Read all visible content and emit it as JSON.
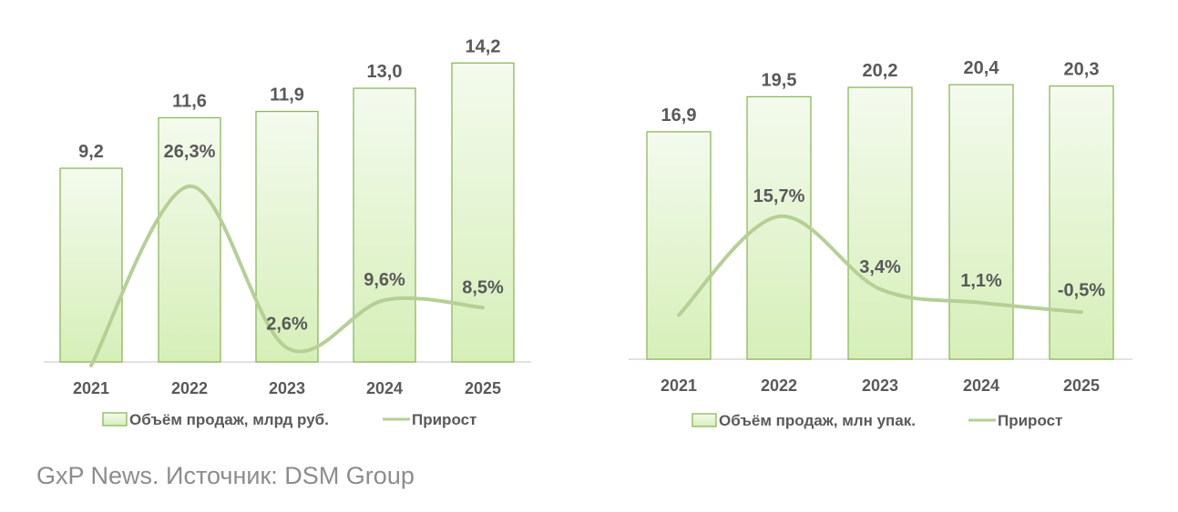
{
  "colors": {
    "bar_top": "#f4faee",
    "bar_bottom": "#d6efb8",
    "bar_stroke": "#8cb85a",
    "line": "#b5cf95",
    "axis": "#d9d9d9",
    "text": "#595959"
  },
  "chart_data": [
    {
      "type": "bar+line",
      "categories": [
        "2021",
        "2022",
        "2023",
        "2024",
        "2025"
      ],
      "series": [
        {
          "name": "Объём продаж, млрд руб.",
          "type": "bar",
          "values": [
            9.2,
            11.6,
            11.9,
            13.0,
            14.2
          ],
          "labels": [
            "9,2",
            "11,6",
            "11,9",
            "13,0",
            "14,2"
          ]
        },
        {
          "name": "Прирост",
          "type": "line",
          "values": [
            0,
            26.3,
            2.6,
            9.6,
            8.5
          ],
          "labels": [
            null,
            "26,3%",
            "2,6%",
            "9,6%",
            "8,5%"
          ]
        }
      ],
      "legend": "bottom",
      "grid": false
    },
    {
      "type": "bar+line",
      "categories": [
        "2021",
        "2022",
        "2023",
        "2024",
        "2025"
      ],
      "series": [
        {
          "name": "Объём продаж, млн упак.",
          "type": "bar",
          "values": [
            16.9,
            19.5,
            20.2,
            20.4,
            20.3
          ],
          "labels": [
            "16,9",
            "19,5",
            "20,2",
            "20,4",
            "20,3"
          ]
        },
        {
          "name": "Прирост",
          "type": "line",
          "values": [
            -1.0,
            15.7,
            3.4,
            1.1,
            -0.5
          ],
          "labels": [
            null,
            "15,7%",
            "3,4%",
            "1,1%",
            "-0,5%"
          ]
        }
      ],
      "legend": "bottom",
      "grid": false
    }
  ],
  "footer": "GxP News. Источник: DSM Group"
}
